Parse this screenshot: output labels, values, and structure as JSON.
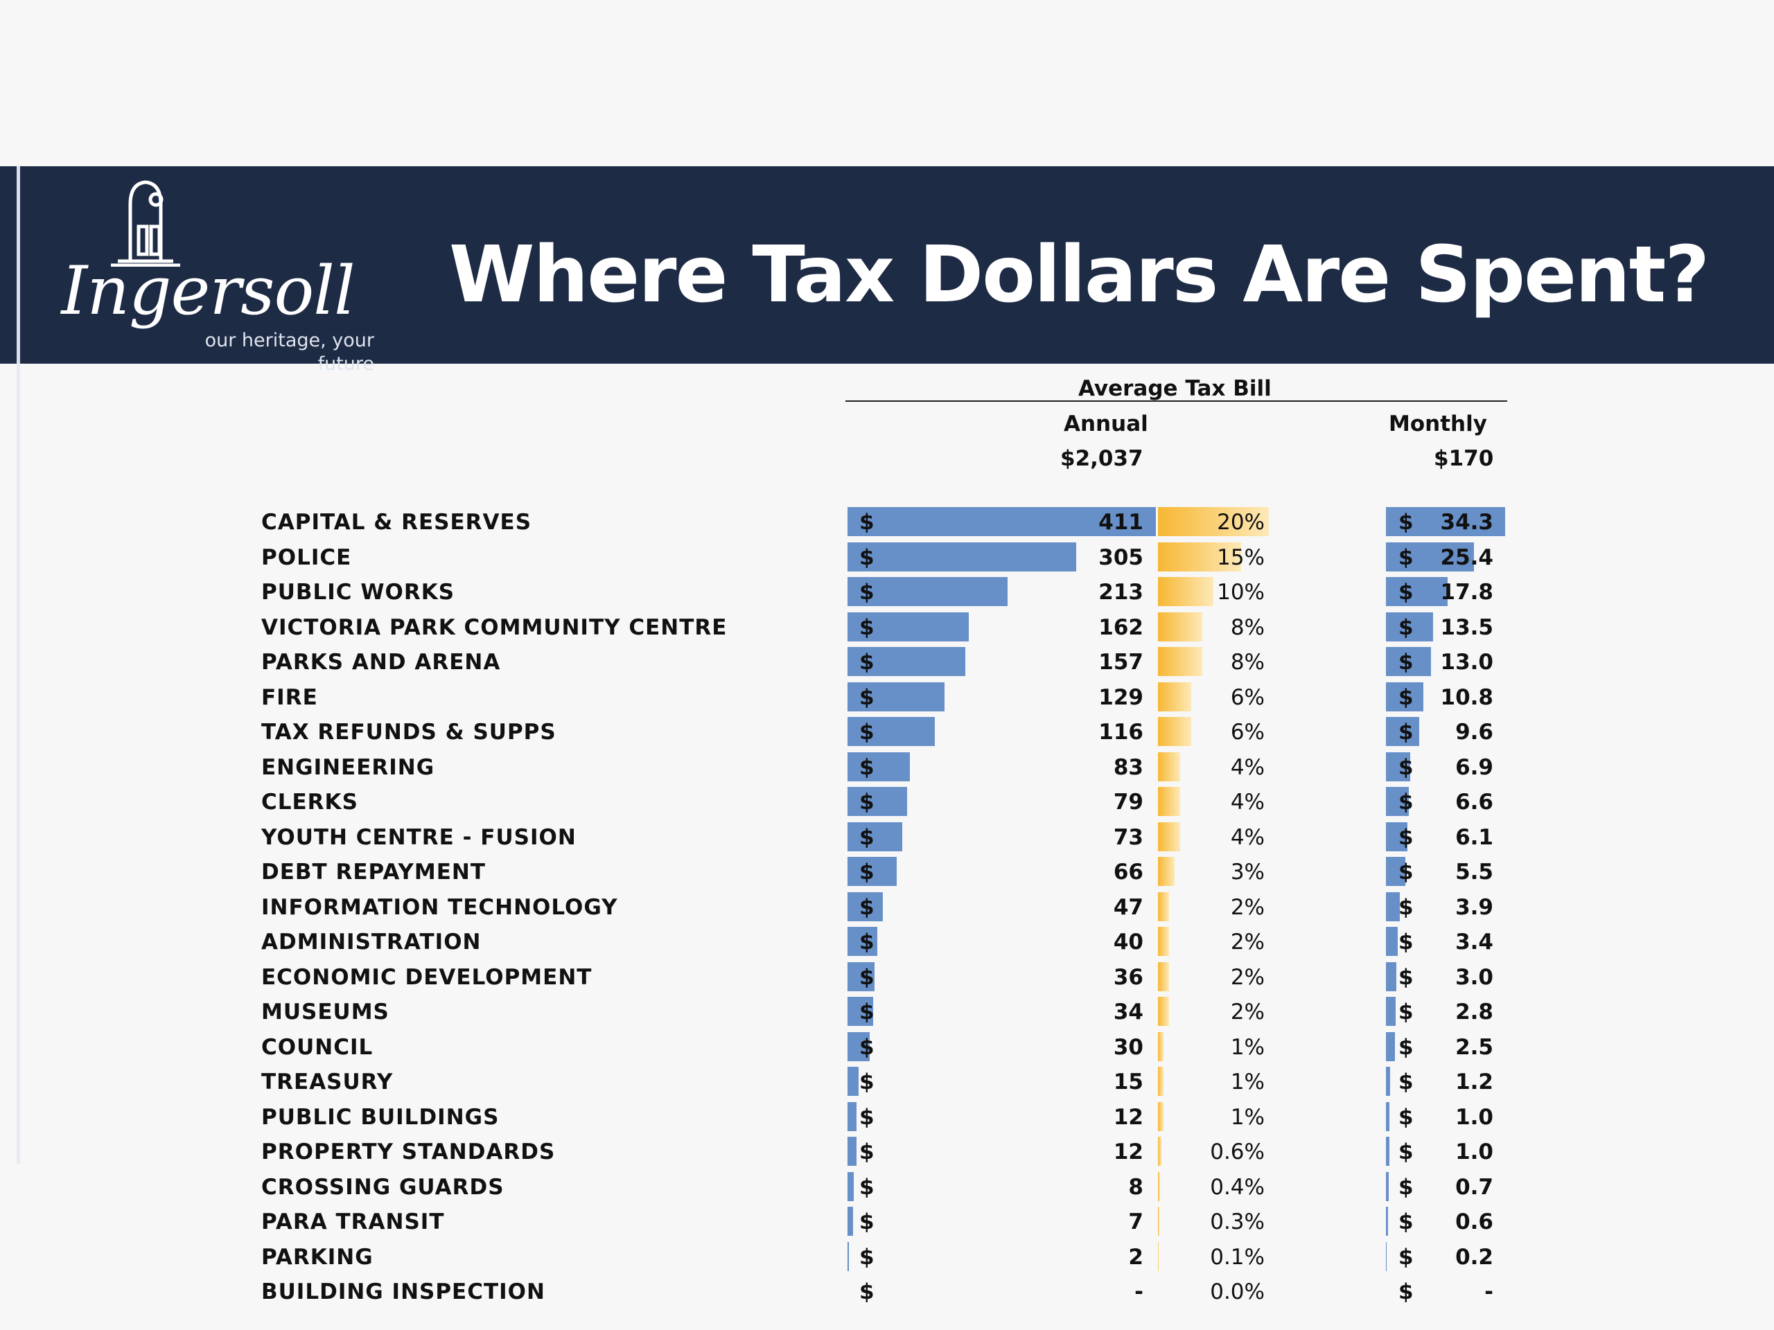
{
  "header": {
    "logo_name": "Ingersoll",
    "logo_tagline": "our heritage, your future",
    "title": "Where Tax Dollars Are Spent?"
  },
  "table": {
    "group_header": "Average Tax Bill",
    "annual_label": "Annual",
    "monthly_label": "Monthly",
    "annual_total": "$2,037",
    "monthly_total": "$170",
    "currency_symbol": "$"
  },
  "colors": {
    "banner": "#1e2b45",
    "bar_blue": "#6890c8",
    "bar_orange": "#f7b733",
    "bar_orange_light": "#fde9b8"
  },
  "chart_data": {
    "type": "table",
    "columns": [
      "Annual",
      "Percent",
      "Monthly"
    ],
    "categories": [
      "CAPITAL & RESERVES",
      "POLICE",
      "PUBLIC WORKS",
      "VICTORIA PARK COMMUNITY CENTRE",
      "PARKS AND ARENA",
      "FIRE",
      "TAX REFUNDS & SUPPS",
      "ENGINEERING",
      "CLERKS",
      "YOUTH CENTRE - FUSION",
      "DEBT REPAYMENT",
      "INFORMATION TECHNOLOGY",
      "ADMINISTRATION",
      "ECONOMIC DEVELOPMENT",
      "MUSEUMS",
      "COUNCIL",
      "TREASURY",
      "PUBLIC BUILDINGS",
      "PROPERTY STANDARDS",
      "CROSSING GUARDS",
      "PARA TRANSIT",
      "PARKING",
      "BUILDING INSPECTION"
    ],
    "annual": [
      411,
      305,
      213,
      162,
      157,
      129,
      116,
      83,
      79,
      73,
      66,
      47,
      40,
      36,
      34,
      30,
      15,
      12,
      12,
      8,
      7,
      2,
      0
    ],
    "annual_labels": [
      "411",
      "305",
      "213",
      "162",
      "157",
      "129",
      "116",
      "83",
      "79",
      "73",
      "66",
      "47",
      "40",
      "36",
      "34",
      "30",
      "15",
      "12",
      "12",
      "8",
      "7",
      "2",
      "-"
    ],
    "percent": [
      20,
      15,
      10,
      8,
      8,
      6,
      6,
      4,
      4,
      4,
      3,
      2,
      2,
      2,
      2,
      1,
      1,
      1,
      0.6,
      0.4,
      0.3,
      0.1,
      0.0
    ],
    "percent_labels": [
      "20%",
      "15%",
      "10%",
      "8%",
      "8%",
      "6%",
      "6%",
      "4%",
      "4%",
      "4%",
      "3%",
      "2%",
      "2%",
      "2%",
      "2%",
      "1%",
      "1%",
      "1%",
      "0.6%",
      "0.4%",
      "0.3%",
      "0.1%",
      "0.0%"
    ],
    "monthly": [
      34.3,
      25.4,
      17.8,
      13.5,
      13.0,
      10.8,
      9.6,
      6.9,
      6.6,
      6.1,
      5.5,
      3.9,
      3.4,
      3.0,
      2.8,
      2.5,
      1.2,
      1.0,
      1.0,
      0.7,
      0.6,
      0.2,
      0
    ],
    "monthly_labels": [
      "34.3",
      "25.4",
      "17.8",
      "13.5",
      "13.0",
      "10.8",
      "9.6",
      "6.9",
      "6.6",
      "6.1",
      "5.5",
      "3.9",
      "3.4",
      "3.0",
      "2.8",
      "2.5",
      "1.2",
      "1.0",
      "1.0",
      "0.7",
      "0.6",
      "0.2",
      "-"
    ]
  }
}
